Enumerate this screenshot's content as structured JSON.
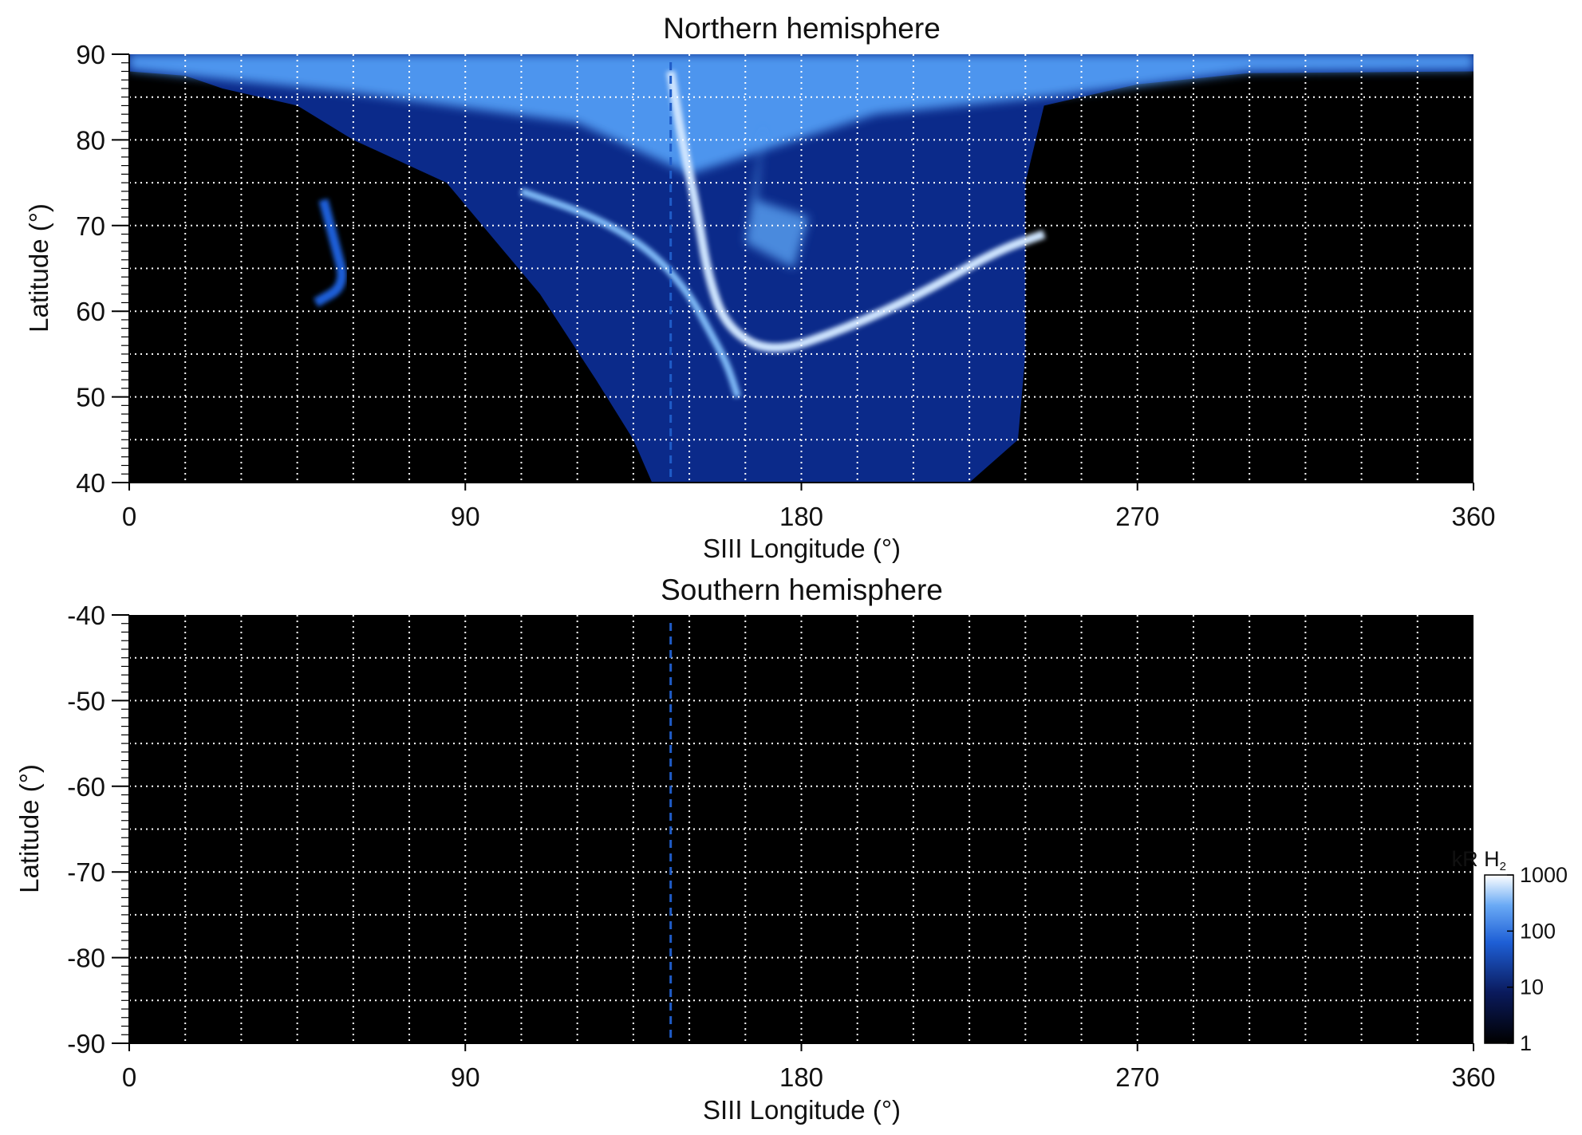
{
  "chart_data": [
    {
      "type": "heatmap",
      "title": "Northern hemisphere",
      "xlabel": "SIII Longitude (°)",
      "ylabel": "Latitude (°)",
      "xlim": [
        0,
        360
      ],
      "ylim": [
        40,
        90
      ],
      "x_ticks": [
        "0",
        "90",
        "180",
        "270",
        "360"
      ],
      "y_ticks": [
        "40",
        "50",
        "60",
        "70",
        "80",
        "90"
      ],
      "grid": true,
      "grid_x_step": 15,
      "grid_y_step": 5,
      "reference_longitude": 145,
      "emission_region": {
        "coverage_boundary": [
          [
            0,
            88
          ],
          [
            15,
            87.5
          ],
          [
            25,
            86
          ],
          [
            45,
            84
          ],
          [
            60,
            80
          ],
          [
            85,
            75
          ],
          [
            110,
            62
          ],
          [
            125,
            52
          ],
          [
            135,
            45
          ],
          [
            140,
            40
          ],
          [
            225,
            40
          ],
          [
            238,
            45
          ],
          [
            240,
            55
          ],
          [
            240,
            65
          ],
          [
            240,
            75
          ],
          [
            245,
            84
          ],
          [
            270,
            86.5
          ],
          [
            300,
            87.8
          ],
          [
            360,
            88
          ]
        ],
        "main_oval": [
          [
            145,
            88
          ],
          [
            148,
            80
          ],
          [
            152,
            72
          ],
          [
            155,
            64
          ],
          [
            160,
            58
          ],
          [
            172,
            55
          ],
          [
            192,
            58
          ],
          [
            212,
            62
          ],
          [
            232,
            67
          ],
          [
            245,
            69
          ]
        ],
        "secondary_arc": [
          [
            105,
            74
          ],
          [
            125,
            71
          ],
          [
            140,
            67
          ],
          [
            150,
            62
          ],
          [
            155,
            58
          ],
          [
            160,
            54
          ],
          [
            163,
            50
          ]
        ],
        "polar_patches": [
          [
            170,
            82
          ],
          [
            165,
            68
          ],
          [
            178,
            65
          ],
          [
            182,
            71
          ],
          [
            168,
            73
          ]
        ],
        "low_latitude_wisps": [
          [
            52,
            73
          ],
          [
            55,
            68
          ],
          [
            58,
            63
          ],
          [
            50,
            61
          ]
        ]
      }
    },
    {
      "type": "heatmap",
      "title": "Southern hemisphere",
      "xlabel": "SIII Longitude (°)",
      "ylabel": "Latitude (°)",
      "xlim": [
        0,
        360
      ],
      "ylim": [
        -90,
        -40
      ],
      "x_ticks": [
        "0",
        "90",
        "180",
        "270",
        "360"
      ],
      "y_ticks": [
        "-90",
        "-80",
        "-70",
        "-60",
        "-50",
        "-40"
      ],
      "grid": true,
      "grid_x_step": 15,
      "grid_y_step": 5,
      "reference_longitude": 145,
      "emission_region": null
    }
  ],
  "colorbar": {
    "label_main": "kR H",
    "label_sub": "2",
    "scale": "log",
    "range": [
      1,
      1000
    ],
    "tick_labels": [
      "1",
      "10",
      "100",
      "1000"
    ],
    "tick_values": [
      1,
      10,
      100,
      1000
    ],
    "colors": [
      "#000000",
      "#0a1a5c",
      "#1e5fd6",
      "#6aaaf5",
      "#ffffff"
    ]
  },
  "style": {
    "background": "#000000",
    "grid_color": "#ffffff",
    "reference_line_color": "#1f5cc8",
    "emission_colors": [
      "#081a55",
      "#1240a8",
      "#2a74e6",
      "#7cb8f7",
      "#e6f2ff"
    ]
  }
}
